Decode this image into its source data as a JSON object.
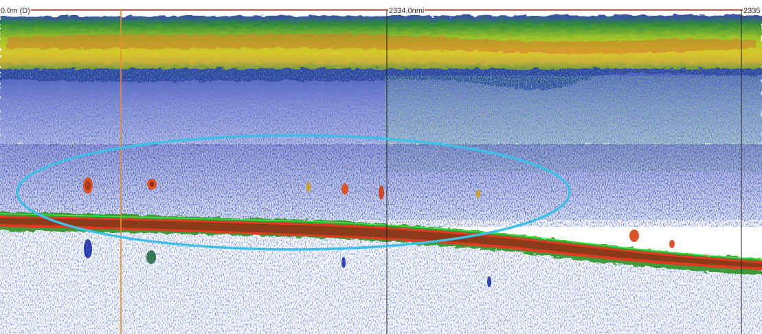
{
  "echogram": {
    "depth_label": "0.0m (D)",
    "distance_marks": [
      {
        "label": "2334.0nmi"
      },
      {
        "label": "2335"
      }
    ],
    "colors": {
      "background": "#ffffff",
      "weak_echo": "#1f2fa8",
      "medium_echo": "#2e8a3c",
      "strong_echo": "#d8d21a",
      "very_strong_echo": "#e0501f",
      "seabed": "#8b3a1a",
      "bottom_line": "#39e639",
      "cursor_line": "#f08a2a",
      "highlight_ellipse": "#3fbfe8"
    }
  }
}
